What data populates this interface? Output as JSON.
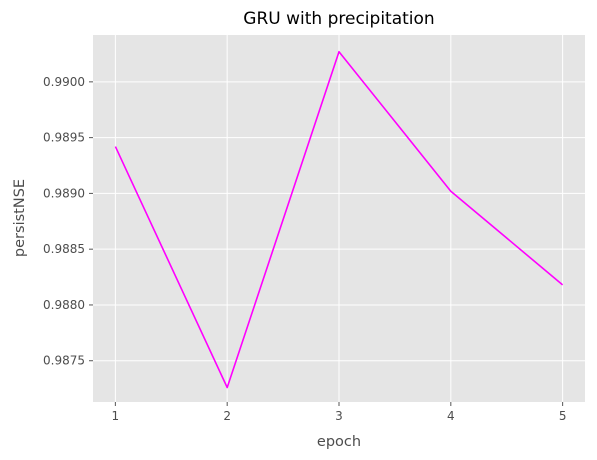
{
  "chart_data": {
    "type": "line",
    "title": "GRU with precipitation",
    "xlabel": "epoch",
    "ylabel": "persistNSE",
    "x": [
      1,
      2,
      3,
      4,
      5
    ],
    "x_ticks": [
      "1",
      "2",
      "3",
      "4",
      "5"
    ],
    "y_ticks": [
      "0.9875",
      "0.9880",
      "0.9885",
      "0.9890",
      "0.9895",
      "0.9900"
    ],
    "series": [
      {
        "values": [
          0.98942,
          0.98726,
          0.99027,
          0.98902,
          0.98818
        ],
        "color": "#ff00ff"
      }
    ],
    "xlim": [
      0.8,
      5.2
    ],
    "ylim": [
      0.98713,
      0.99042
    ],
    "grid": true,
    "background": "#e5e5e5",
    "grid_color": "#ffffff"
  }
}
